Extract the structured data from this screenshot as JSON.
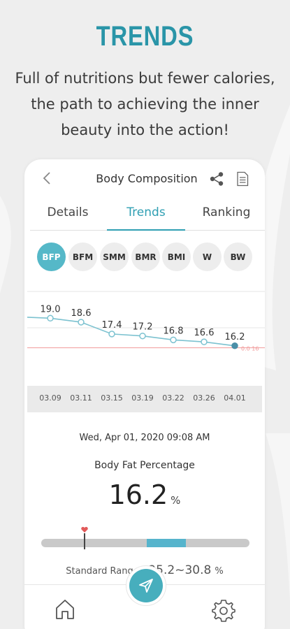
{
  "promo": {
    "headline": "TRENDS",
    "subtext": "Full of nutritions but fewer calories, the path to achieving the inner beauty into the action!"
  },
  "header": {
    "title": "Body Composition"
  },
  "tabs": [
    {
      "label": "Details",
      "active": false
    },
    {
      "label": "Trends",
      "active": true
    },
    {
      "label": "Ranking",
      "active": false
    }
  ],
  "metrics": [
    {
      "label": "BFP",
      "active": true
    },
    {
      "label": "BFM",
      "active": false
    },
    {
      "label": "SMM",
      "active": false
    },
    {
      "label": "BMR",
      "active": false
    },
    {
      "label": "BMI",
      "active": false
    },
    {
      "label": "W",
      "active": false
    },
    {
      "label": "BW",
      "active": false
    }
  ],
  "chart_data": {
    "type": "line",
    "x": [
      "03.09",
      "03.11",
      "03.15",
      "03.19",
      "03.22",
      "03.26",
      "04.01"
    ],
    "values": [
      19.0,
      18.6,
      17.4,
      17.2,
      16.8,
      16.6,
      16.2
    ],
    "value_labels": [
      "19.0",
      "18.6",
      "17.4",
      "17.2",
      "16.8",
      "16.6",
      "16.2"
    ],
    "reference_line": {
      "value": 16,
      "label": "0.0 16"
    },
    "ylim": [
      14.2,
      22.0
    ],
    "grid": true,
    "colors": {
      "line": "#7cc2d0",
      "point_fill": "#ffffff",
      "last_point": "#4b8fa8",
      "reference": "#f19a9a",
      "grid": "#e6e6e6"
    }
  },
  "detail": {
    "timestamp": "Wed, Apr 01, 2020 09:08 AM",
    "metric_name": "Body Fat Percentage",
    "value": "16.2",
    "unit": "%",
    "range_label": "Standard Range :",
    "range_value": "25.2~30.8",
    "range_unit": "%",
    "scale_min": 10,
    "scale_max": 40,
    "range_low": 25.2,
    "range_high": 30.8
  },
  "nav": {
    "items": [
      {
        "icon": "home-icon"
      },
      {
        "icon": "send-icon"
      },
      {
        "icon": "gear-icon"
      }
    ]
  },
  "colors": {
    "accent": "#2f9fb3",
    "chip_active": "#55b8c8",
    "background": "#eeeeee"
  }
}
